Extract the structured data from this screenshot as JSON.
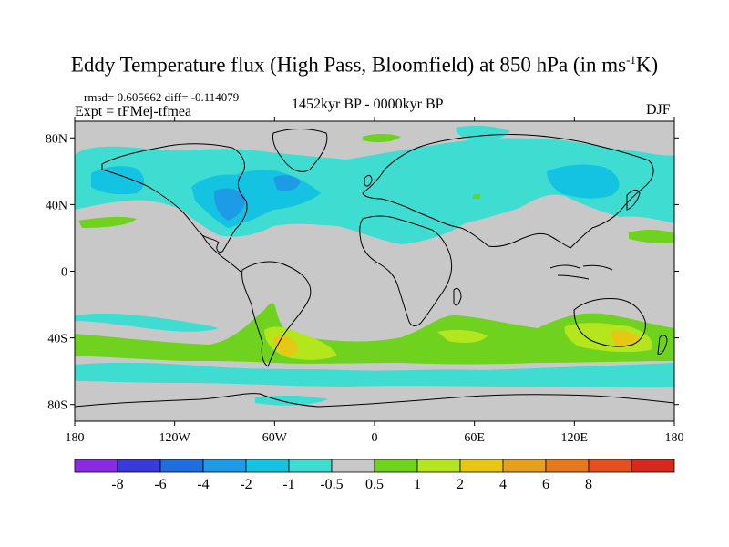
{
  "header": {
    "title_main": "Eddy Temperature flux (High Pass, Bloomfield) at 850 hPa (in ms",
    "title_sup": "-1",
    "title_tail": "K)",
    "stats": "rmsd= 0.605662 diff= -0.114079",
    "expt": "Expt = tFMej-tfmea",
    "period": "1452kyr BP - 0000kyr BP",
    "season": "DJF"
  },
  "map": {
    "background_color": "#c8c8c8",
    "lat_ticks": [
      "80N",
      "40N",
      "0",
      "40S",
      "80S"
    ],
    "lat_values": [
      80,
      40,
      0,
      -40,
      -80
    ],
    "lon_ticks": [
      "180",
      "120W",
      "60W",
      "0",
      "60E",
      "120E",
      "180"
    ],
    "lon_values": [
      -180,
      -120,
      -60,
      0,
      60,
      120,
      180
    ],
    "lon_range": [
      -180,
      180
    ],
    "lat_range": [
      -90,
      90
    ]
  },
  "colorbar": {
    "colors": [
      "#8a2be2",
      "#3a3adc",
      "#1e6ee0",
      "#1e9be6",
      "#14c3e1",
      "#3fdcd2",
      "#c8c8c8",
      "#6ed21e",
      "#b4e61e",
      "#e6c814",
      "#e6a01e",
      "#e6781e",
      "#e6501e",
      "#d7281e"
    ],
    "labels": [
      "-8",
      "-6",
      "-4",
      "-2",
      "-1",
      "-0.5",
      "0.5",
      "1",
      "2",
      "4",
      "6",
      "8"
    ]
  }
}
